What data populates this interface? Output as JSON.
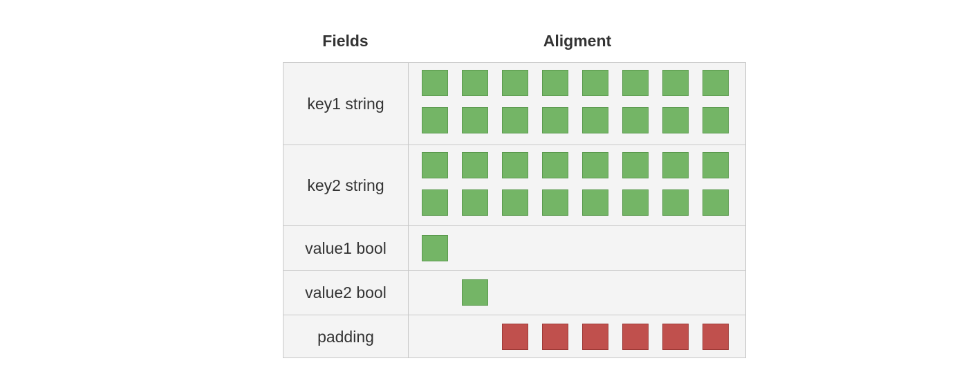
{
  "headers": {
    "fields": "Fields",
    "alignment": "Aligment"
  },
  "colors": {
    "data": "#74b566",
    "data_border": "#5a9a4d",
    "padding": "#c0504d",
    "padding_border": "#9e3a37"
  },
  "rows": [
    {
      "label": "key1 string",
      "kind": "data",
      "start": 0,
      "count": 16
    },
    {
      "label": "key2 string",
      "kind": "data",
      "start": 0,
      "count": 16
    },
    {
      "label": "value1 bool",
      "kind": "data",
      "start": 0,
      "count": 1
    },
    {
      "label": "value2 bool",
      "kind": "data",
      "start": 1,
      "count": 1
    },
    {
      "label": "padding",
      "kind": "padding",
      "start": 2,
      "count": 6
    }
  ]
}
